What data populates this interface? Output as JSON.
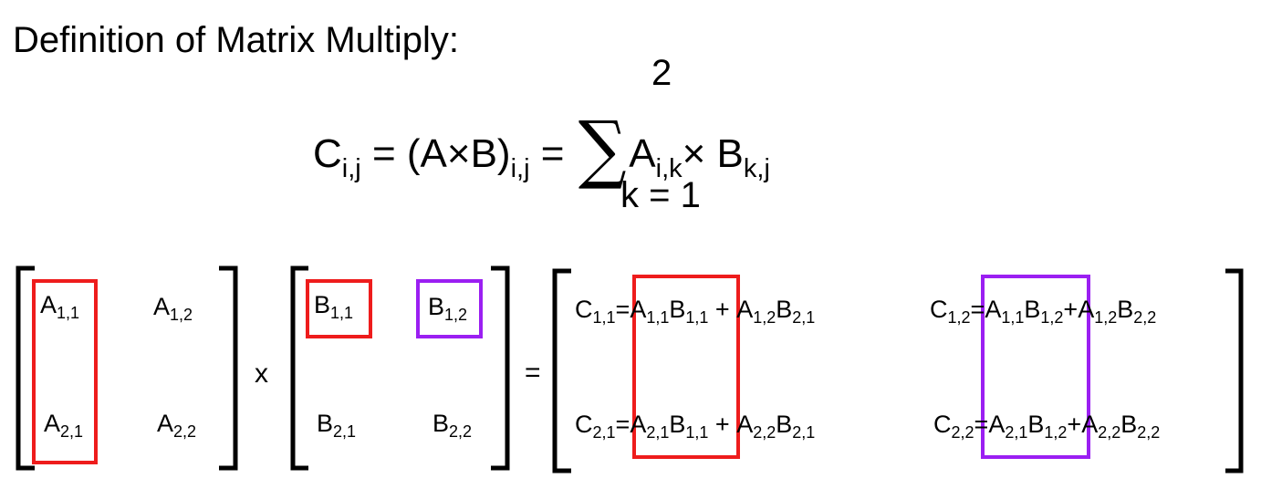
{
  "title": "Definition of Matrix Multiply:",
  "formula": {
    "C": "C",
    "C_sub": "i,j",
    "eq1": "= (A×B)",
    "AB_sub": "i,j",
    "eq2": "=",
    "sum_upper": "2",
    "sum_lower": "k = 1",
    "A": "A",
    "A_sub": "i,k",
    "times": "× B",
    "B_sub": "k,j"
  },
  "matrix_a": [
    {
      "sym": "A",
      "sub": "1,1"
    },
    {
      "sym": "A",
      "sub": "1,2"
    },
    {
      "sym": "A",
      "sub": "2,1"
    },
    {
      "sym": "A",
      "sub": "2,2"
    }
  ],
  "times_op": "x",
  "matrix_b": [
    {
      "sym": "B",
      "sub": "1,1"
    },
    {
      "sym": "B",
      "sub": "1,2"
    },
    {
      "sym": "B",
      "sub": "2,1"
    },
    {
      "sym": "B",
      "sub": "2,2"
    }
  ],
  "equals_op": "=",
  "matrix_c": [
    {
      "c": "C",
      "c_sub": "1,1",
      "t1a": "A",
      "t1a_sub": "1,1",
      "t1b": "B",
      "t1b_sub": "1,1",
      "plus": "+",
      "t2a": "A",
      "t2a_sub": "1,2",
      "t2b": "B",
      "t2b_sub": "2,1"
    },
    {
      "c": "C",
      "c_sub": "1,2",
      "t1a": "A",
      "t1a_sub": "1,1",
      "t1b": "B",
      "t1b_sub": "1,2",
      "plus": "+",
      "t2a": "A",
      "t2a_sub": "1,2",
      "t2b": "B",
      "t2b_sub": "2,2"
    },
    {
      "c": "C",
      "c_sub": "2,1",
      "t1a": "A",
      "t1a_sub": "2,1",
      "t1b": "B",
      "t1b_sub": "1,1",
      "plus": "+",
      "t2a": "A",
      "t2a_sub": "2,2",
      "t2b": "B",
      "t2b_sub": "2,1"
    },
    {
      "c": "C",
      "c_sub": "2,2",
      "t1a": "A",
      "t1a_sub": "2,1",
      "t1b": "B",
      "t1b_sub": "1,2",
      "plus": "+",
      "t2a": "A",
      "t2a_sub": "2,2",
      "t2b": "B",
      "t2b_sub": "2,2"
    }
  ],
  "colors": {
    "first_column_highlight": "#ee1c1c",
    "second_column_highlight": "#9b1ff2",
    "text": "#000000"
  }
}
